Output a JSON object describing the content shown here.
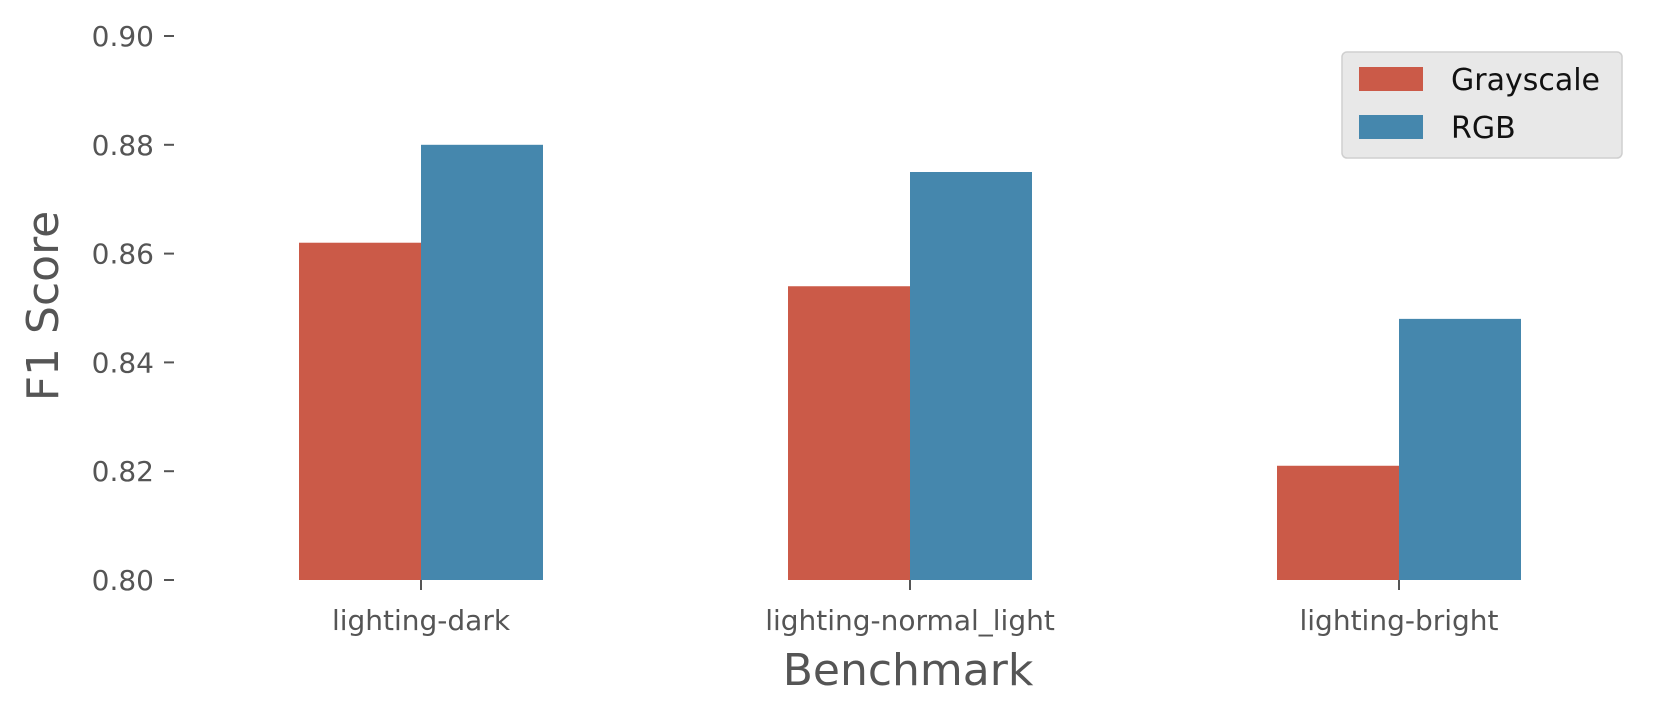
{
  "chart_data": {
    "type": "bar",
    "xlabel": "Benchmark",
    "ylabel": "F1 Score",
    "categories": [
      "lighting-dark",
      "lighting-normal_light",
      "lighting-bright"
    ],
    "series": [
      {
        "name": "Grayscale",
        "color": "#cb5a48",
        "values": [
          0.862,
          0.854,
          0.821
        ]
      },
      {
        "name": "RGB",
        "color": "#4587ad",
        "values": [
          0.88,
          0.875,
          0.848
        ]
      }
    ],
    "ylim": [
      0.8,
      0.9
    ],
    "yticks": [
      "0.80",
      "0.82",
      "0.84",
      "0.86",
      "0.88",
      "0.90"
    ],
    "grid": false,
    "legend_position": "top-right"
  }
}
